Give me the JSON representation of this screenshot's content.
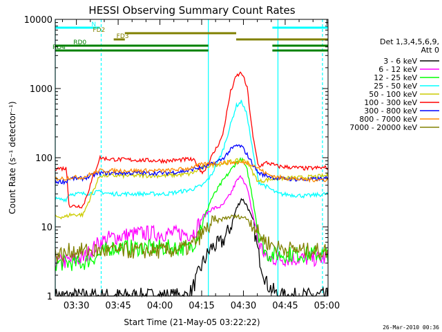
{
  "chart_data": {
    "type": "line",
    "title": "HESSI Observing Summary Count Rates",
    "xlabel": "Start Time (21-May-05 03:22:22)",
    "ylabel": "Count Rate (s⁻¹ detector⁻¹)",
    "yscale": "log",
    "ylim": [
      1,
      10000
    ],
    "xlim_minutes": [
      0,
      98
    ],
    "x_ticks": [
      {
        "label": "03:30",
        "min": 7.6
      },
      {
        "label": "03:45",
        "min": 22.6
      },
      {
        "label": "04:00",
        "min": 37.6
      },
      {
        "label": "04:15",
        "min": 52.6
      },
      {
        "label": "04:30",
        "min": 67.6
      },
      {
        "label": "04:45",
        "min": 82.6
      },
      {
        "label": "05:00",
        "min": 97.6
      }
    ],
    "y_ticks": [
      {
        "label": "1",
        "value": 1
      },
      {
        "label": "10",
        "value": 10
      },
      {
        "label": "100",
        "value": 100
      },
      {
        "label": "1000",
        "value": 1000
      },
      {
        "label": "10000",
        "value": 10000
      }
    ],
    "legend_header": [
      "Det 1,3,4,5,6,9,",
      "Att 0"
    ],
    "legend_position": "right",
    "series": [
      {
        "name": "3 - 6 keV",
        "color": "#000000",
        "points": [
          [
            0,
            1
          ],
          [
            10,
            1
          ],
          [
            16,
            1
          ],
          [
            20,
            1
          ],
          [
            40,
            1
          ],
          [
            48,
            1
          ],
          [
            50,
            1.5
          ],
          [
            53,
            3
          ],
          [
            56,
            5
          ],
          [
            60,
            6
          ],
          [
            63,
            10
          ],
          [
            65,
            18
          ],
          [
            67,
            26
          ],
          [
            69,
            20
          ],
          [
            71,
            12
          ],
          [
            73,
            4
          ],
          [
            76,
            1.5
          ],
          [
            80,
            1
          ]
        ]
      },
      {
        "name": "6 - 12 keV",
        "color": "#ff00ff",
        "points": [
          [
            0,
            3
          ],
          [
            10,
            3.5
          ],
          [
            16,
            6
          ],
          [
            20,
            7
          ],
          [
            30,
            8
          ],
          [
            40,
            8
          ],
          [
            48,
            8
          ],
          [
            50,
            8.5
          ],
          [
            53,
            14
          ],
          [
            56,
            18
          ],
          [
            60,
            20
          ],
          [
            63,
            30
          ],
          [
            65,
            45
          ],
          [
            67,
            55
          ],
          [
            69,
            35
          ],
          [
            71,
            15
          ],
          [
            73,
            6
          ],
          [
            76,
            3.5
          ],
          [
            80,
            3.5
          ],
          [
            90,
            3.5
          ],
          [
            98,
            3.5
          ]
        ]
      },
      {
        "name": "12 - 25 keV",
        "color": "#00ff00",
        "points": [
          [
            0,
            3
          ],
          [
            10,
            3
          ],
          [
            16,
            4
          ],
          [
            20,
            5
          ],
          [
            40,
            5
          ],
          [
            48,
            5
          ],
          [
            50,
            6
          ],
          [
            53,
            12
          ],
          [
            56,
            25
          ],
          [
            60,
            45
          ],
          [
            63,
            65
          ],
          [
            65,
            85
          ],
          [
            67,
            95
          ],
          [
            69,
            65
          ],
          [
            71,
            25
          ],
          [
            73,
            8
          ],
          [
            76,
            4
          ],
          [
            80,
            4
          ],
          [
            90,
            4
          ],
          [
            98,
            4
          ]
        ]
      },
      {
        "name": "25 - 50 keV",
        "color": "#00ffff",
        "points": [
          [
            0,
            25
          ],
          [
            4,
            25
          ],
          [
            5,
            30
          ],
          [
            10,
            30
          ],
          [
            16,
            32
          ],
          [
            20,
            30
          ],
          [
            40,
            30
          ],
          [
            48,
            34
          ],
          [
            50,
            36
          ],
          [
            53,
            40
          ],
          [
            56,
            55
          ],
          [
            60,
            120
          ],
          [
            63,
            300
          ],
          [
            65,
            560
          ],
          [
            67,
            650
          ],
          [
            69,
            400
          ],
          [
            71,
            120
          ],
          [
            73,
            45
          ],
          [
            76,
            38
          ],
          [
            80,
            30
          ],
          [
            90,
            28
          ],
          [
            98,
            30
          ]
        ]
      },
      {
        "name": "50 - 100 keV",
        "color": "#cccc00",
        "points": [
          [
            0,
            14
          ],
          [
            4,
            14
          ],
          [
            5,
            15
          ],
          [
            10,
            15
          ],
          [
            16,
            55
          ],
          [
            20,
            55
          ],
          [
            40,
            55
          ],
          [
            48,
            58
          ],
          [
            50,
            62
          ],
          [
            53,
            72
          ],
          [
            56,
            78
          ],
          [
            60,
            82
          ],
          [
            63,
            88
          ],
          [
            65,
            90
          ],
          [
            67,
            92
          ],
          [
            69,
            88
          ],
          [
            71,
            60
          ],
          [
            73,
            45
          ],
          [
            76,
            48
          ],
          [
            80,
            50
          ],
          [
            90,
            52
          ],
          [
            98,
            55
          ]
        ]
      },
      {
        "name": "100 - 300 keV",
        "color": "#ff0000",
        "points": [
          [
            0,
            70
          ],
          [
            4,
            70
          ],
          [
            5,
            20
          ],
          [
            10,
            20
          ],
          [
            16,
            100
          ],
          [
            20,
            95
          ],
          [
            40,
            90
          ],
          [
            48,
            95
          ],
          [
            50,
            90
          ],
          [
            53,
            60
          ],
          [
            56,
            100
          ],
          [
            60,
            200
          ],
          [
            63,
            900
          ],
          [
            65,
            1500
          ],
          [
            67,
            1700
          ],
          [
            69,
            1000
          ],
          [
            71,
            200
          ],
          [
            73,
            75
          ],
          [
            76,
            85
          ],
          [
            80,
            75
          ],
          [
            90,
            70
          ],
          [
            98,
            72
          ]
        ]
      },
      {
        "name": "300 - 800 keV",
        "color": "#0000ff",
        "points": [
          [
            0,
            45
          ],
          [
            4,
            45
          ],
          [
            5,
            50
          ],
          [
            10,
            50
          ],
          [
            16,
            60
          ],
          [
            20,
            60
          ],
          [
            40,
            60
          ],
          [
            48,
            65
          ],
          [
            50,
            70
          ],
          [
            53,
            72
          ],
          [
            56,
            80
          ],
          [
            60,
            95
          ],
          [
            63,
            130
          ],
          [
            65,
            150
          ],
          [
            67,
            145
          ],
          [
            69,
            110
          ],
          [
            71,
            80
          ],
          [
            73,
            60
          ],
          [
            76,
            55
          ],
          [
            80,
            50
          ],
          [
            90,
            48
          ],
          [
            98,
            50
          ]
        ]
      },
      {
        "name": "800 - 7000 keV",
        "color": "#ff8c00",
        "points": [
          [
            0,
            50
          ],
          [
            4,
            50
          ],
          [
            5,
            52
          ],
          [
            10,
            52
          ],
          [
            16,
            65
          ],
          [
            20,
            65
          ],
          [
            40,
            65
          ],
          [
            48,
            70
          ],
          [
            50,
            75
          ],
          [
            53,
            80
          ],
          [
            56,
            82
          ],
          [
            60,
            85
          ],
          [
            63,
            85
          ],
          [
            65,
            85
          ],
          [
            67,
            85
          ],
          [
            69,
            85
          ],
          [
            71,
            80
          ],
          [
            73,
            70
          ],
          [
            76,
            58
          ],
          [
            80,
            52
          ],
          [
            90,
            48
          ],
          [
            98,
            48
          ]
        ]
      },
      {
        "name": "7000 - 20000 keV",
        "color": "#808000",
        "points": [
          [
            0,
            4
          ],
          [
            4,
            4
          ],
          [
            5,
            4.5
          ],
          [
            10,
            4.5
          ],
          [
            16,
            4.5
          ],
          [
            20,
            4.5
          ],
          [
            40,
            4.5
          ],
          [
            48,
            5
          ],
          [
            50,
            6
          ],
          [
            53,
            8
          ],
          [
            56,
            11
          ],
          [
            60,
            13
          ],
          [
            63,
            14
          ],
          [
            65,
            14
          ],
          [
            67,
            14
          ],
          [
            69,
            13
          ],
          [
            71,
            11
          ],
          [
            73,
            8
          ],
          [
            76,
            6
          ],
          [
            80,
            5
          ],
          [
            90,
            4.5
          ],
          [
            98,
            4.5
          ]
        ]
      }
    ],
    "flag_bars": [
      {
        "label": "N",
        "color": "#00ffff",
        "segments": [
          [
            0,
            16
          ],
          [
            78,
            98
          ]
        ]
      },
      {
        "label": "FD2",
        "color": "#808000",
        "segments": [
          [
            25,
            65
          ]
        ]
      },
      {
        "label": "FD3",
        "color": "#808000",
        "segments": [
          [
            21,
            25
          ],
          [
            65,
            98
          ]
        ]
      },
      {
        "label": "RD0",
        "color": "#008000",
        "segments": [
          [
            0,
            55
          ],
          [
            78,
            98
          ]
        ]
      },
      {
        "label": "RD4",
        "color": "#008000",
        "segments": [
          [
            0,
            16
          ],
          [
            16,
            55
          ],
          [
            78,
            98
          ]
        ]
      }
    ],
    "vertical_markers": [
      {
        "min": 0,
        "color": "#00ffff",
        "style": "solid"
      },
      {
        "min": 16.5,
        "color": "#00ffff",
        "style": "dashed"
      },
      {
        "min": 55,
        "color": "#00ffff",
        "style": "solid"
      },
      {
        "min": 80,
        "color": "#00ffff",
        "style": "solid"
      },
      {
        "min": 96,
        "color": "#00ffff",
        "style": "dashed"
      }
    ]
  },
  "footer_stamp": "26-Mar-2010 00:36"
}
